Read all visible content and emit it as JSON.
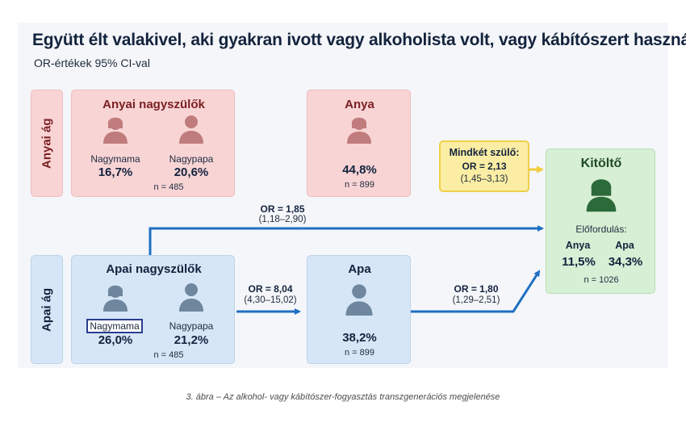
{
  "title": "Együtt élt valakivel, aki gyakran ivott vagy alkoholista volt, vagy kábítószert használt",
  "subtitle": "OR-értékek 95% CI-val",
  "maternal": {
    "side_label": "Anyai ág",
    "grandparents": {
      "title": "Anyai nagyszülők",
      "grandma_label": "Nagymama",
      "grandma_value": "16,7%",
      "grandpa_label": "Nagypapa",
      "grandpa_value": "20,6%",
      "n": "n = 485"
    },
    "mother": {
      "title": "Anya",
      "value": "44,8%",
      "n": "n = 899"
    }
  },
  "paternal": {
    "side_label": "Apai ág",
    "grandparents": {
      "title": "Apai nagyszülők",
      "grandma_label": "Nagymama",
      "grandma_value": "26,0%",
      "grandpa_label": "Nagypapa",
      "grandpa_value": "21,2%",
      "n": "n = 485"
    },
    "father": {
      "title": "Apa",
      "value": "38,2%",
      "n": "n = 899"
    }
  },
  "respondent": {
    "title": "Kitöltő",
    "prevalence_label": "Előfordulás:",
    "mother_label": "Anya",
    "mother_value": "11,5%",
    "father_label": "Apa",
    "father_value": "34,3%",
    "n": "n = 1026"
  },
  "both_parents": {
    "title": "Mindkét szülő:",
    "or": "OR = 2,13",
    "ci": "(1,45–3,13)"
  },
  "arrows": {
    "grandma_to_respondent": {
      "or": "OR = 1,85",
      "ci": "(1,18–2,90)"
    },
    "grandparents_to_father": {
      "or": "OR = 8,04",
      "ci": "(4,30–15,02)"
    },
    "father_to_respondent": {
      "or": "OR = 1,80",
      "ci": "(1,29–2,51)"
    }
  },
  "colors": {
    "maternal": "#f8d4d5",
    "paternal": "#d6e6f6",
    "respondent": "#d7efd5",
    "arrow": "#1f6fc3",
    "yellow_arrow": "#f2cc3a"
  },
  "caption": "3. ábra – Az alkohol- vagy kábítószer-fogyasztás transzgenerációs megjelenése"
}
